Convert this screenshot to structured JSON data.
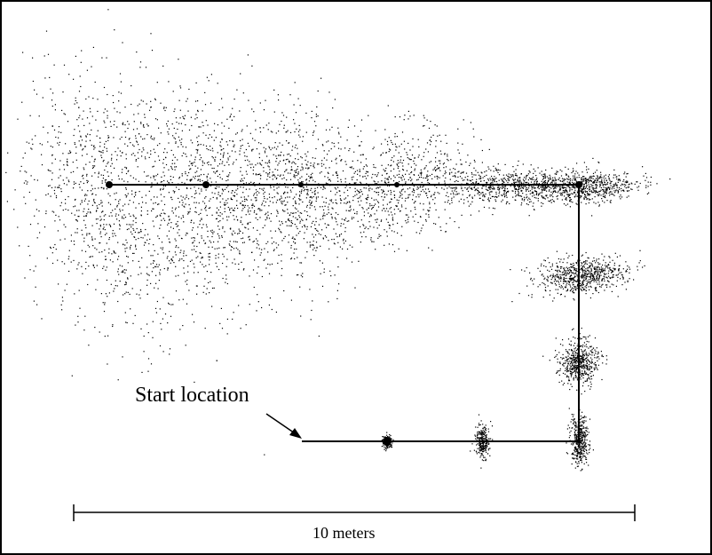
{
  "annotations": {
    "start_label": "Start location",
    "scale_label": "10 meters"
  },
  "colors": {
    "ink": "#000000",
    "background": "#ffffff"
  },
  "scale_bar": {
    "length_meters": 10
  },
  "figure": {
    "description_type": "robot localization particle clouds along a rectilinear path",
    "particle_clusters": 10
  }
}
